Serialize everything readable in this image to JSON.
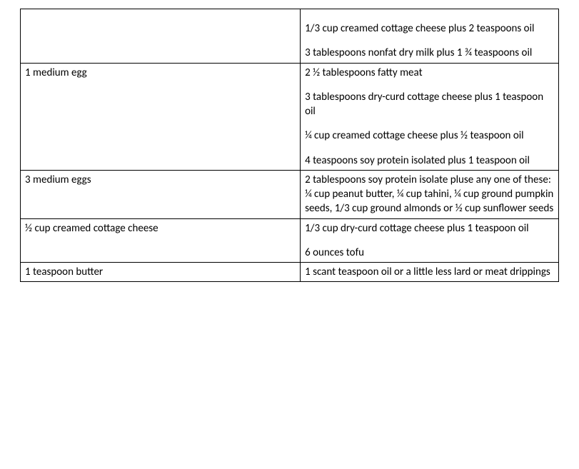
{
  "table": {
    "font_family": "Calibri",
    "font_size_pt": 11,
    "text_color": "#000000",
    "border_color": "#000000",
    "background_color": "#ffffff",
    "column_widths_pct": [
      52,
      48
    ],
    "rows": [
      {
        "left": "",
        "right_paragraphs": [
          "1/3 cup creamed cottage  cheese plus 2 teaspoons oil",
          "3 tablespoons nonfat dry milk plus 1 ¾ teaspoons oil"
        ],
        "right_pad_top": true
      },
      {
        "left": "1 medium egg",
        "right_paragraphs": [
          "2 ½ tablespoons fatty meat",
          "3 tablespoons dry-curd cottage cheese plus 1 teaspoon oil",
          "¼ cup creamed cottage cheese plus ½ teaspoon oil",
          "4 teaspoons soy protein isolated plus 1 teaspoon oil"
        ]
      },
      {
        "left": "3 medium eggs",
        "right_paragraphs": [
          "2 tablespoons soy protein isolate pluse any one of these:  ¼ cup peanut butter, ¼ cup tahini, ¼ cup ground pumpkin seeds, 1/3 cup ground almonds or ½ cup sunflower seeds"
        ]
      },
      {
        "left": "½ cup creamed cottage cheese",
        "right_paragraphs": [
          "1/3 cup dry-curd cottage cheese plus 1 teaspoon oil",
          "6 ounces tofu"
        ]
      },
      {
        "left": "1 teaspoon butter",
        "right_paragraphs": [
          "1 scant teaspoon oil or a little less lard or meat drippings"
        ]
      }
    ]
  }
}
